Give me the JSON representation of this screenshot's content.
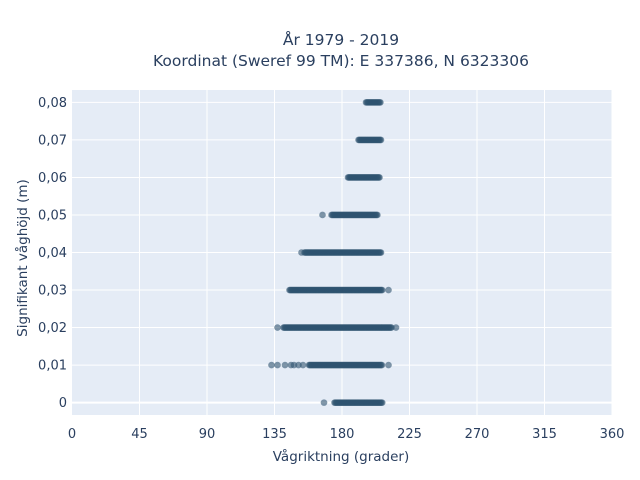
{
  "chart_data": {
    "type": "scatter",
    "title": "År 1979 - 2019",
    "subtitle": "Koordinat (Sweref 99 TM): E 337386, N 6323306",
    "xlabel": "Vågriktning (grader)",
    "ylabel": "Signifikant våghöjd (m)",
    "xlim": [
      0,
      360
    ],
    "ylim": [
      -0.0033,
      0.0833
    ],
    "x_ticks": [
      0,
      45,
      90,
      135,
      180,
      225,
      270,
      315,
      360
    ],
    "x_tick_labels": [
      "0",
      "45",
      "90",
      "135",
      "180",
      "225",
      "270",
      "315",
      "360"
    ],
    "y_ticks": [
      0,
      0.01,
      0.02,
      0.03,
      0.04,
      0.05,
      0.06,
      0.07,
      0.08
    ],
    "y_tick_labels": [
      "0",
      "0,01",
      "0,02",
      "0,03",
      "0,04",
      "0,05",
      "0,06",
      "0,07",
      "0,08"
    ],
    "grid": true,
    "plot_background": "#e5ecf6",
    "marker_color": "#2f5470",
    "series": [
      {
        "points": [
          {
            "y": 0.0,
            "x_min": 175,
            "x_max": 207,
            "outliers": [
              168
            ]
          },
          {
            "y": 0.01,
            "x_min": 158,
            "x_max": 207,
            "outliers": [
              133,
              137,
              142,
              146,
              148,
              151,
              154,
              211
            ]
          },
          {
            "y": 0.02,
            "x_min": 141,
            "x_max": 213,
            "outliers": [
              137,
              216
            ]
          },
          {
            "y": 0.03,
            "x_min": 145,
            "x_max": 207,
            "outliers": [
              211
            ]
          },
          {
            "y": 0.04,
            "x_min": 155,
            "x_max": 206,
            "outliers": [
              153
            ]
          },
          {
            "y": 0.05,
            "x_min": 173,
            "x_max": 204,
            "outliers": [
              167
            ]
          },
          {
            "y": 0.06,
            "x_min": 184,
            "x_max": 205,
            "outliers": []
          },
          {
            "y": 0.07,
            "x_min": 191,
            "x_max": 206,
            "outliers": []
          },
          {
            "y": 0.08,
            "x_min": 196,
            "x_max": 206,
            "outliers": []
          }
        ]
      }
    ]
  }
}
